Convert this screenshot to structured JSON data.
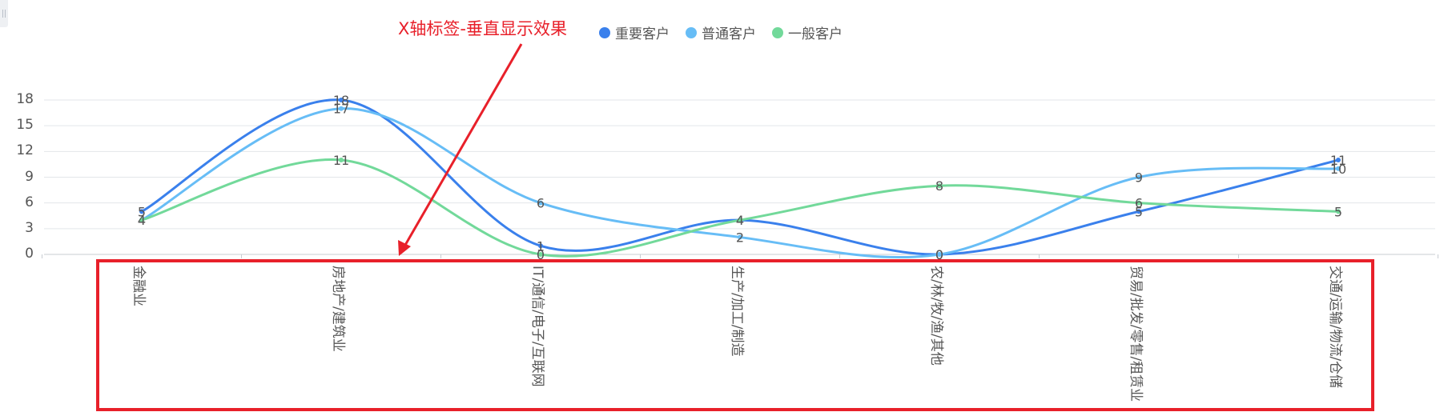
{
  "chart_data": {
    "type": "line",
    "smooth": true,
    "categories": [
      "金融业",
      "房地产/建筑业",
      "IT/通信/电子/互联网",
      "生产/加工/制造",
      "农/林/牧/渔/其他",
      "贸易/批发/零售/租赁业",
      "交通/运输/物流/仓储"
    ],
    "series": [
      {
        "name": "重要客户",
        "values": [
          5,
          18,
          1,
          4,
          0,
          5,
          11
        ],
        "color": "#3a80ec"
      },
      {
        "name": "普通客户",
        "values": [
          4,
          17,
          6,
          2,
          0,
          9,
          10
        ],
        "color": "#67bdf6"
      },
      {
        "name": "一般客户",
        "values": [
          4,
          11,
          0,
          4,
          8,
          6,
          5
        ],
        "color": "#72d99a"
      }
    ],
    "yticks": [
      0,
      3,
      6,
      9,
      12,
      15,
      18
    ],
    "ylim": [
      0,
      18
    ],
    "grid": true,
    "legend_position": "top",
    "annotation": "X轴标签-垂直显示效果",
    "annotation_color": "#e8202a"
  }
}
